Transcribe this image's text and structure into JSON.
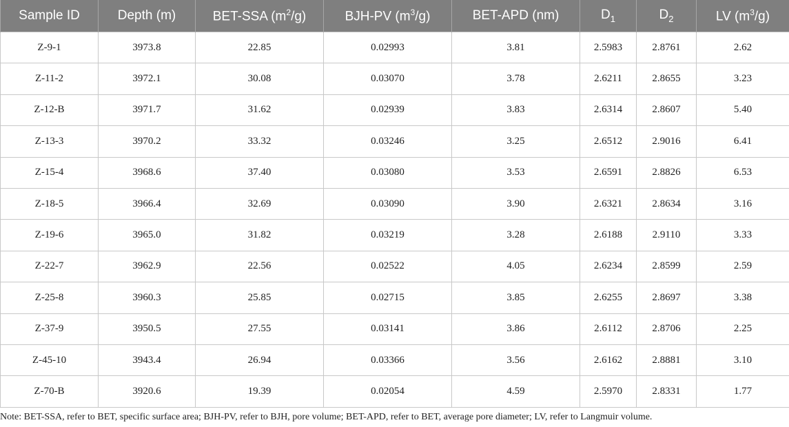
{
  "table": {
    "headers": [
      {
        "text": "Sample ID",
        "sup": "",
        "sub": "",
        "tail": ""
      },
      {
        "text": "Depth (m)",
        "sup": "",
        "sub": "",
        "tail": ""
      },
      {
        "text": "BET-SSA (m",
        "sup": "2",
        "sub": "",
        "tail": "/g)"
      },
      {
        "text": "BJH-PV (m",
        "sup": "3",
        "sub": "",
        "tail": "/g)"
      },
      {
        "text": "BET-APD (nm)",
        "sup": "",
        "sub": "",
        "tail": ""
      },
      {
        "text": "D",
        "sup": "",
        "sub": "1",
        "tail": ""
      },
      {
        "text": "D",
        "sup": "",
        "sub": "2",
        "tail": ""
      },
      {
        "text": "LV (m",
        "sup": "3",
        "sub": "",
        "tail": "/g)"
      }
    ],
    "rows": [
      [
        "Z-9-1",
        "3973.8",
        "22.85",
        "0.02993",
        "3.81",
        "2.5983",
        "2.8761",
        "2.62"
      ],
      [
        "Z-11-2",
        "3972.1",
        "30.08",
        "0.03070",
        "3.78",
        "2.6211",
        "2.8655",
        "3.23"
      ],
      [
        "Z-12-B",
        "3971.7",
        "31.62",
        "0.02939",
        "3.83",
        "2.6314",
        "2.8607",
        "5.40"
      ],
      [
        "Z-13-3",
        "3970.2",
        "33.32",
        "0.03246",
        "3.25",
        "2.6512",
        "2.9016",
        "6.41"
      ],
      [
        "Z-15-4",
        "3968.6",
        "37.40",
        "0.03080",
        "3.53",
        "2.6591",
        "2.8826",
        "6.53"
      ],
      [
        "Z-18-5",
        "3966.4",
        "32.69",
        "0.03090",
        "3.90",
        "2.6321",
        "2.8634",
        "3.16"
      ],
      [
        "Z-19-6",
        "3965.0",
        "31.82",
        "0.03219",
        "3.28",
        "2.6188",
        "2.9110",
        "3.33"
      ],
      [
        "Z-22-7",
        "3962.9",
        "22.56",
        "0.02522",
        "4.05",
        "2.6234",
        "2.8599",
        "2.59"
      ],
      [
        "Z-25-8",
        "3960.3",
        "25.85",
        "0.02715",
        "3.85",
        "2.6255",
        "2.8697",
        "3.38"
      ],
      [
        "Z-37-9",
        "3950.5",
        "27.55",
        "0.03141",
        "3.86",
        "2.6112",
        "2.8706",
        "2.25"
      ],
      [
        "Z-45-10",
        "3943.4",
        "26.94",
        "0.03366",
        "3.56",
        "2.6162",
        "2.8881",
        "3.10"
      ],
      [
        "Z-70-B",
        "3920.6",
        "19.39",
        "0.02054",
        "4.59",
        "2.5970",
        "2.8331",
        "1.77"
      ]
    ]
  },
  "note": "Note: BET-SSA, refer to BET, specific surface area; BJH-PV, refer to BJH, pore volume; BET-APD, refer to BET, average pore diameter; LV, refer to Langmuir volume.",
  "colors": {
    "header_bg": "#7f7f7f",
    "header_text": "#ffffff",
    "border": "#c8c8c8"
  }
}
